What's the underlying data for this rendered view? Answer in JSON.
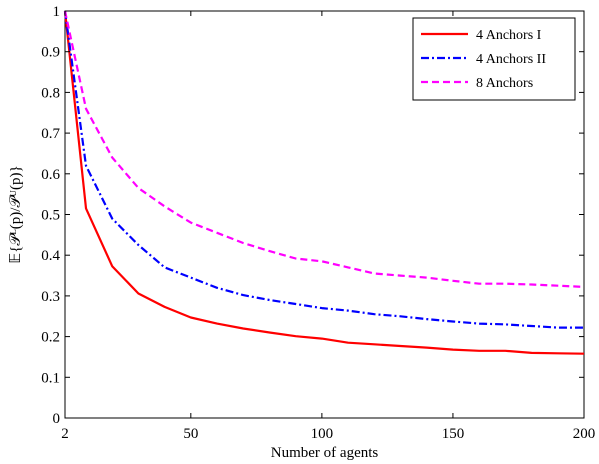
{
  "chart_data": {
    "type": "line",
    "xlabel": "Number of agents",
    "ylabel": "𝔼{𝒫ᴸ(p)/𝒫ᵁ(p)}",
    "xlim": [
      2,
      200
    ],
    "ylim": [
      0,
      1
    ],
    "xticks": [
      2,
      50,
      100,
      150,
      200
    ],
    "yticks": [
      0,
      0.1,
      0.2,
      0.3,
      0.4,
      0.5,
      0.6,
      0.7,
      0.8,
      0.9,
      1
    ],
    "grid": false,
    "legend_position": "top-right",
    "x": [
      2,
      10,
      20,
      30,
      40,
      50,
      60,
      70,
      80,
      90,
      100,
      110,
      120,
      130,
      140,
      150,
      160,
      170,
      180,
      190,
      200
    ],
    "series": [
      {
        "name": "4 Anchors I",
        "color": "#ff0000",
        "dash": "solid",
        "values": [
          1.0,
          0.515,
          0.373,
          0.306,
          0.273,
          0.247,
          0.232,
          0.22,
          0.21,
          0.201,
          0.195,
          0.185,
          0.181,
          0.177,
          0.173,
          0.168,
          0.165,
          0.165,
          0.16,
          0.159,
          0.158
        ]
      },
      {
        "name": "4 Anchors II",
        "color": "#0000ff",
        "dash": "dashdot",
        "values": [
          1.0,
          0.62,
          0.49,
          0.425,
          0.37,
          0.345,
          0.32,
          0.302,
          0.29,
          0.28,
          0.27,
          0.264,
          0.255,
          0.25,
          0.243,
          0.237,
          0.232,
          0.23,
          0.226,
          0.222,
          0.222
        ]
      },
      {
        "name": "8 Anchors",
        "color": "#ff00ff",
        "dash": "dashed",
        "values": [
          1.0,
          0.76,
          0.64,
          0.565,
          0.52,
          0.48,
          0.455,
          0.43,
          0.41,
          0.392,
          0.385,
          0.37,
          0.355,
          0.35,
          0.345,
          0.337,
          0.33,
          0.33,
          0.328,
          0.325,
          0.322
        ]
      }
    ]
  }
}
